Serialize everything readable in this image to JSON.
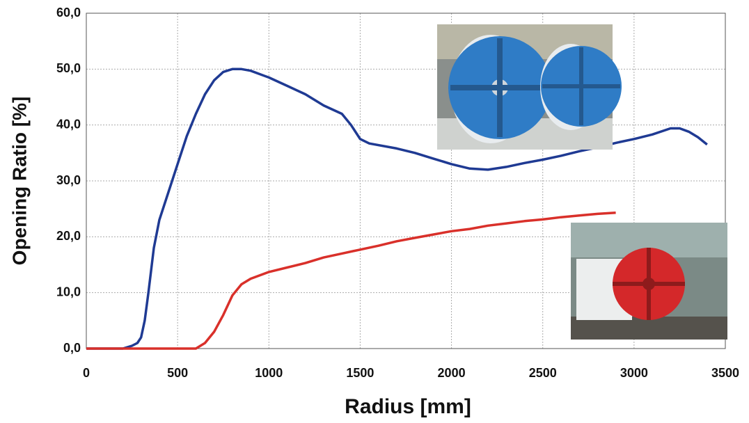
{
  "chart_data": {
    "type": "line",
    "xlabel": "Radius [mm]",
    "ylabel": "Opening Ratio [%]",
    "xlim": [
      0,
      3500
    ],
    "xticks": [
      0,
      500,
      1000,
      1500,
      2000,
      2500,
      3000,
      3500
    ],
    "ylim": [
      0,
      60
    ],
    "yticks": [
      {
        "value": 0,
        "label": "0,0"
      },
      {
        "value": 10,
        "label": "10,0"
      },
      {
        "value": 20,
        "label": "20,0"
      },
      {
        "value": 30,
        "label": "30,0"
      },
      {
        "value": 40,
        "label": "40,0"
      },
      {
        "value": 50,
        "label": "50,0"
      },
      {
        "value": 60,
        "label": "60,0"
      }
    ],
    "grid": true,
    "series": [
      {
        "color": "#1f3a93",
        "x": [
          0,
          200,
          250,
          280,
          300,
          320,
          340,
          370,
          400,
          450,
          500,
          550,
          600,
          650,
          700,
          750,
          800,
          850,
          900,
          1000,
          1100,
          1200,
          1300,
          1400,
          1450,
          1500,
          1550,
          1700,
          1800,
          1900,
          2000,
          2100,
          2200,
          2300,
          2400,
          2500,
          2600,
          2700,
          2800,
          2900,
          3000,
          3100,
          3200,
          3250,
          3300,
          3350,
          3400
        ],
        "values": [
          0,
          0,
          0.5,
          1,
          2,
          5,
          10,
          18,
          23,
          28,
          33,
          38,
          42,
          45.5,
          48,
          49.5,
          50,
          50,
          49.7,
          48.5,
          47,
          45.5,
          43.5,
          42,
          40,
          37.5,
          36.7,
          35.8,
          35,
          34,
          33,
          32.2,
          32,
          32.5,
          33.2,
          33.8,
          34.5,
          35.3,
          36,
          36.8,
          37.5,
          38.3,
          39.4,
          39.4,
          38.8,
          37.8,
          36.5
        ]
      },
      {
        "color": "#d9302a",
        "x": [
          0,
          500,
          600,
          650,
          700,
          750,
          800,
          850,
          900,
          1000,
          1100,
          1200,
          1300,
          1400,
          1500,
          1600,
          1700,
          1800,
          1900,
          2000,
          2100,
          2200,
          2300,
          2400,
          2500,
          2600,
          2700,
          2800,
          2900
        ],
        "values": [
          0,
          0,
          0,
          1,
          3,
          6,
          9.5,
          11.5,
          12.5,
          13.7,
          14.5,
          15.3,
          16.3,
          17,
          17.7,
          18.4,
          19.2,
          19.8,
          20.4,
          21,
          21.4,
          22,
          22.4,
          22.8,
          23.1,
          23.5,
          23.8,
          24.1,
          24.3
        ]
      }
    ]
  }
}
